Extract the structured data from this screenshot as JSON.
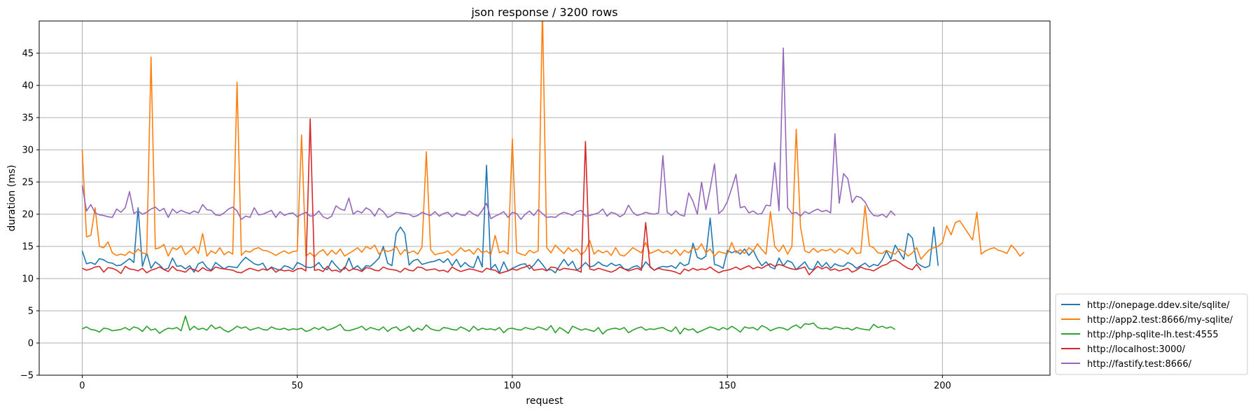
{
  "chart_data": {
    "type": "line",
    "title": "json response / 3200 rows",
    "xlabel": "request",
    "ylabel": "duration (ms)",
    "xlim": [
      -10,
      225
    ],
    "ylim": [
      -5,
      50
    ],
    "xticks": [
      0,
      50,
      100,
      150,
      200
    ],
    "yticks": [
      -5,
      0,
      5,
      10,
      15,
      20,
      25,
      30,
      35,
      40,
      45
    ],
    "grid": true,
    "legend_position": "lower-right-outside",
    "series": [
      {
        "name": "http://onepage.ddev.site/sqlite/",
        "color": "#1f77b4",
        "values": [
          14.3,
          12.3,
          12.5,
          12.2,
          13.1,
          12.9,
          12.5,
          12.4,
          12.0,
          12.1,
          12.6,
          13.1,
          12.5,
          21.0,
          11.9,
          14.0,
          11.6,
          12.6,
          12.1,
          11.4,
          11.6,
          13.2,
          11.9,
          12.0,
          11.5,
          12.0,
          11.0,
          12.3,
          12.6,
          11.7,
          11.3,
          12.5,
          12.0,
          11.5,
          11.9,
          11.8,
          11.7,
          12.6,
          13.3,
          12.8,
          12.3,
          12.1,
          12.4,
          11.3,
          11.8,
          11.5,
          11.3,
          12.0,
          11.8,
          11.4,
          12.5,
          12.2,
          11.8,
          11.7,
          11.9,
          12.5,
          11.6,
          11.4,
          12.8,
          12.0,
          11.3,
          11.5,
          13.2,
          11.5,
          12.0,
          11.3,
          12.0,
          11.9,
          12.5,
          13.2,
          15.0,
          12.4,
          12.0,
          17.0,
          18.0,
          17.0,
          12.1,
          12.8,
          13.0,
          12.2,
          12.4,
          12.6,
          12.7,
          13.0,
          12.5,
          13.1,
          12.0,
          13.0,
          11.8,
          12.5,
          11.9,
          11.7,
          13.5,
          11.8,
          27.6,
          11.5,
          12.2,
          10.9,
          12.6,
          11.2,
          11.6,
          11.9,
          12.2,
          12.3,
          11.5,
          12.1,
          13.0,
          12.2,
          11.3,
          11.4,
          10.9,
          12.0,
          13.0,
          12.0,
          12.7,
          11.3,
          11.8,
          12.5,
          11.8,
          12.0,
          12.6,
          12.1,
          11.9,
          12.4,
          12.0,
          12.2,
          11.5,
          11.4,
          11.8,
          12.0,
          11.5,
          12.6,
          11.9,
          11.3,
          11.7,
          11.9,
          11.8,
          12.0,
          11.6,
          12.5,
          12.0,
          12.3,
          15.5,
          13.3,
          13.0,
          13.5,
          19.4,
          12.2,
          12.0,
          11.6,
          14.4,
          14.0,
          14.3,
          13.8,
          14.6,
          13.6,
          14.4,
          13.0,
          12.0,
          12.6,
          11.8,
          11.5,
          13.2,
          12.0,
          12.8,
          12.5,
          11.4,
          12.0,
          12.6,
          11.5,
          11.4,
          12.7,
          11.8,
          12.5,
          11.6,
          12.3,
          12.0,
          11.9,
          12.5,
          12.2,
          11.6,
          12.0,
          12.4,
          11.8,
          12.2,
          12.0,
          12.9,
          14.3,
          13.0,
          15.2,
          14.1,
          13.0,
          17.0,
          16.3,
          12.5,
          12.0,
          11.7,
          12.0,
          18.0,
          12.0
        ]
      },
      {
        "name": "http://app2.test:8666/my-sqlite/",
        "color": "#ff7f0e",
        "values": [
          30.0,
          16.5,
          16.7,
          21.0,
          15.0,
          14.8,
          15.7,
          14.0,
          13.6,
          13.8,
          13.6,
          14.2,
          13.8,
          14.6,
          14.0,
          13.8,
          44.4,
          14.6,
          14.8,
          15.3,
          13.5,
          14.8,
          14.5,
          15.1,
          13.7,
          14.3,
          15.0,
          13.9,
          17.0,
          13.5,
          14.3,
          13.9,
          14.8,
          13.7,
          14.2,
          13.8,
          40.5,
          13.6,
          14.3,
          14.1,
          14.6,
          14.8,
          14.4,
          14.3,
          14.0,
          13.6,
          14.0,
          14.3,
          13.9,
          14.2,
          14.3,
          32.3,
          13.5,
          14.0,
          13.4,
          14.1,
          14.5,
          13.6,
          14.4,
          13.8,
          14.6,
          13.5,
          13.9,
          14.3,
          14.8,
          14.1,
          15.0,
          14.6,
          15.2,
          13.8,
          14.5,
          14.2,
          14.4,
          15.0,
          13.7,
          14.5,
          14.0,
          14.3,
          13.8,
          14.9,
          29.7,
          14.5,
          13.7,
          13.9,
          14.0,
          14.3,
          13.6,
          14.1,
          14.8,
          14.2,
          14.5,
          13.8,
          14.7,
          14.0,
          14.3,
          13.7,
          16.7,
          14.0,
          14.3,
          13.8,
          31.7,
          14.1,
          13.8,
          13.6,
          14.4,
          14.0,
          14.3,
          52.0,
          14.8,
          14.0,
          15.2,
          14.5,
          13.9,
          14.8,
          14.2,
          14.6,
          13.7,
          14.3,
          15.9,
          13.8,
          14.4,
          14.0,
          14.3,
          13.6,
          14.8,
          13.7,
          13.5,
          14.1,
          14.8,
          14.4,
          14.0,
          15.6,
          13.9,
          14.2,
          14.5,
          14.0,
          14.3,
          13.8,
          14.5,
          13.6,
          14.4,
          14.0,
          14.8,
          14.5,
          15.4,
          14.0,
          14.6,
          13.5,
          14.2,
          14.0,
          13.8,
          15.6,
          14.0,
          14.5,
          13.9,
          14.8,
          14.3,
          15.4,
          14.5,
          13.8,
          20.4,
          15.0,
          14.2,
          15.2,
          13.8,
          15.0,
          33.2,
          18.0,
          14.3,
          14.0,
          14.7,
          14.1,
          14.5,
          14.3,
          14.6,
          14.0,
          14.6,
          14.3,
          13.8,
          14.8,
          13.9,
          14.0,
          21.3,
          15.1,
          14.8,
          14.0,
          13.9,
          14.4,
          14.0,
          13.8,
          14.6,
          14.2,
          13.5,
          14.0,
          14.8,
          13.0,
          13.8,
          14.5,
          14.8,
          15.0,
          15.6,
          18.2,
          16.8,
          18.7,
          19.0,
          18.0,
          17.0,
          16.0,
          20.3,
          13.8,
          14.3,
          14.6,
          14.8,
          14.4,
          14.2,
          13.9,
          15.2,
          14.5,
          13.5,
          14.1
        ]
      },
      {
        "name": "http://php-sqlite-lh.test:4555",
        "color": "#2ca02c",
        "values": [
          2.2,
          2.5,
          2.1,
          2.0,
          1.7,
          2.3,
          2.2,
          1.9,
          2.0,
          2.1,
          2.4,
          2.0,
          2.5,
          2.3,
          1.8,
          2.6,
          2.0,
          2.2,
          1.5,
          2.0,
          2.3,
          2.2,
          2.4,
          1.9,
          4.2,
          2.0,
          2.6,
          2.1,
          2.3,
          2.0,
          2.8,
          2.2,
          2.5,
          2.0,
          1.7,
          2.1,
          2.6,
          2.3,
          2.5,
          2.0,
          2.2,
          2.4,
          2.1,
          2.0,
          2.5,
          2.2,
          2.1,
          2.3,
          2.0,
          2.2,
          2.1,
          2.3,
          1.8,
          2.0,
          2.4,
          2.1,
          2.5,
          2.0,
          2.2,
          2.5,
          2.9,
          2.0,
          1.9,
          2.1,
          2.3,
          2.6,
          2.0,
          2.4,
          2.2,
          2.0,
          2.5,
          1.8,
          2.3,
          2.5,
          1.9,
          2.2,
          2.6,
          1.8,
          2.3,
          2.0,
          2.8,
          2.2,
          2.0,
          1.9,
          2.4,
          2.3,
          2.1,
          2.0,
          2.5,
          2.2,
          1.8,
          2.6,
          2.0,
          2.3,
          2.1,
          2.2,
          2.0,
          2.4,
          1.6,
          2.2,
          2.3,
          2.1,
          2.0,
          2.4,
          2.2,
          2.1,
          2.5,
          2.3,
          2.0,
          2.7,
          1.6,
          2.4,
          2.0,
          1.5,
          2.6,
          2.3,
          2.0,
          2.2,
          2.0,
          1.8,
          2.4,
          1.4,
          2.0,
          2.2,
          2.3,
          2.1,
          2.4,
          1.6,
          2.0,
          2.3,
          2.5,
          2.0,
          2.2,
          2.1,
          2.3,
          2.4,
          2.0,
          1.8,
          2.5,
          1.4,
          2.3,
          2.0,
          2.2,
          1.6,
          1.9,
          2.2,
          2.5,
          2.3,
          2.0,
          2.4,
          2.1,
          2.6,
          2.2,
          1.7,
          2.5,
          2.3,
          2.4,
          2.0,
          2.7,
          2.4,
          1.9,
          2.2,
          2.4,
          2.3,
          2.0,
          2.5,
          2.8,
          2.3,
          3.0,
          2.9,
          3.1,
          2.4,
          2.2,
          2.3,
          2.1,
          2.5,
          2.4,
          2.2,
          2.3,
          2.0,
          2.4,
          2.2,
          2.1,
          2.0,
          2.9,
          2.4,
          2.6,
          2.3,
          2.5,
          2.1
        ]
      },
      {
        "name": "http://localhost:3000/",
        "color": "#d62728",
        "values": [
          11.6,
          11.3,
          11.5,
          11.8,
          11.9,
          11.0,
          11.7,
          11.6,
          11.3,
          10.8,
          11.9,
          11.5,
          11.4,
          11.2,
          11.6,
          10.9,
          11.3,
          11.5,
          11.8,
          11.4,
          11.1,
          11.9,
          11.3,
          11.2,
          11.0,
          11.6,
          11.4,
          11.1,
          11.7,
          11.3,
          11.2,
          11.8,
          11.6,
          11.5,
          11.4,
          11.3,
          11.0,
          10.9,
          11.3,
          11.6,
          11.4,
          11.2,
          11.5,
          11.3,
          11.7,
          11.0,
          11.4,
          11.2,
          11.3,
          11.1,
          11.5,
          11.6,
          11.2,
          34.8,
          11.3,
          11.4,
          11.1,
          11.9,
          11.2,
          11.3,
          11.0,
          11.8,
          11.2,
          11.5,
          11.4,
          11.1,
          11.7,
          11.6,
          11.3,
          11.2,
          11.8,
          11.5,
          11.4,
          11.3,
          11.0,
          11.6,
          11.3,
          11.2,
          11.8,
          11.7,
          11.3,
          11.4,
          11.5,
          11.2,
          11.3,
          11.0,
          11.8,
          11.4,
          11.1,
          11.3,
          11.5,
          11.4,
          11.2,
          11.0,
          11.6,
          11.4,
          11.3,
          10.8,
          11.0,
          11.2,
          11.5,
          11.3,
          11.6,
          11.8,
          12.1,
          11.3,
          11.4,
          11.5,
          11.2,
          11.8,
          11.7,
          11.3,
          11.6,
          11.5,
          11.4,
          11.3,
          11.0,
          31.3,
          11.5,
          11.3,
          11.6,
          11.4,
          11.2,
          11.0,
          11.3,
          11.8,
          11.5,
          11.2,
          11.4,
          11.6,
          11.3,
          18.7,
          11.8,
          11.3,
          11.6,
          11.4,
          11.3,
          11.2,
          11.0,
          10.7,
          11.5,
          11.2,
          11.6,
          11.3,
          11.5,
          11.4,
          11.8,
          11.3,
          10.9,
          11.2,
          11.3,
          11.5,
          11.8,
          11.4,
          11.7,
          12.0,
          11.5,
          11.8,
          11.6,
          12.0,
          12.3,
          11.9,
          12.2,
          12.0,
          11.7,
          11.5,
          11.4,
          11.6,
          11.8,
          10.6,
          11.3,
          11.9,
          11.5,
          11.8,
          11.3,
          11.5,
          11.2,
          11.4,
          11.6,
          11.0,
          11.3,
          11.8,
          11.5,
          11.4,
          11.2,
          11.6,
          12.0,
          12.2,
          12.7,
          12.9,
          12.5,
          12.0,
          11.6,
          11.4,
          12.2,
          11.3
        ]
      },
      {
        "name": "http://fastify.test:8666/",
        "color": "#9467bd",
        "values": [
          24.5,
          20.5,
          21.5,
          20.2,
          19.9,
          19.8,
          19.6,
          19.5,
          20.8,
          20.3,
          21.0,
          23.5,
          20.1,
          20.5,
          20.0,
          20.3,
          20.8,
          21.1,
          20.5,
          20.9,
          19.5,
          20.8,
          20.2,
          20.6,
          20.3,
          20.1,
          20.5,
          20.2,
          21.5,
          20.7,
          20.6,
          19.9,
          19.8,
          20.2,
          20.8,
          21.1,
          20.5,
          19.2,
          19.7,
          19.5,
          21.0,
          19.9,
          20.0,
          20.3,
          20.6,
          19.5,
          20.4,
          19.8,
          20.1,
          20.2,
          19.6,
          20.0,
          20.3,
          19.7,
          19.8,
          20.5,
          19.6,
          19.3,
          19.7,
          21.3,
          20.8,
          20.6,
          22.5,
          20.0,
          20.5,
          20.2,
          21.0,
          20.6,
          19.7,
          20.9,
          20.4,
          19.5,
          19.8,
          20.3,
          20.2,
          20.1,
          20.0,
          19.6,
          19.8,
          20.3,
          20.0,
          19.8,
          20.4,
          19.7,
          20.1,
          20.3,
          19.6,
          20.2,
          19.9,
          19.8,
          20.5,
          20.0,
          19.7,
          20.6,
          21.7,
          19.3,
          19.7,
          20.0,
          20.4,
          19.5,
          20.3,
          20.1,
          19.2,
          20.0,
          20.5,
          19.8,
          20.7,
          20.1,
          19.5,
          19.6,
          19.5,
          20.0,
          20.3,
          20.1,
          19.8,
          20.4,
          20.6,
          19.7,
          19.8,
          20.0,
          20.2,
          20.8,
          19.7,
          20.3,
          20.1,
          19.6,
          20.0,
          21.4,
          20.3,
          19.8,
          20.0,
          20.3,
          20.1,
          20.0,
          20.2,
          29.1,
          20.3,
          19.8,
          20.5,
          19.9,
          19.7,
          23.3,
          22.0,
          20.0,
          25.0,
          20.7,
          24.0,
          27.8,
          20.1,
          20.7,
          22.0,
          24.0,
          26.2,
          21.0,
          21.2,
          20.2,
          20.5,
          20.0,
          20.1,
          21.4,
          21.3,
          28.0,
          20.5,
          45.8,
          21.0,
          20.1,
          20.3,
          19.7,
          20.4,
          20.1,
          20.5,
          20.8,
          20.4,
          20.6,
          20.2,
          32.5,
          21.7,
          26.3,
          25.5,
          21.8,
          22.8,
          22.6,
          21.9,
          20.6,
          19.8,
          19.7,
          20.0,
          19.5,
          20.5,
          19.8
        ]
      }
    ]
  }
}
